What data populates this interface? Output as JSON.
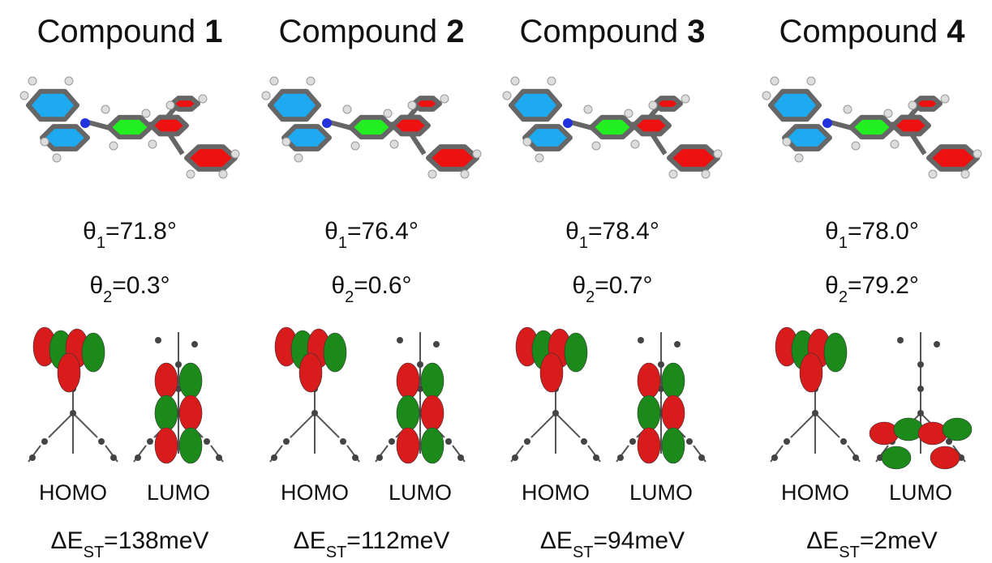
{
  "compounds": [
    {
      "name": "Compound",
      "number": "1",
      "theta1": {
        "symbol": "θ",
        "sub": "1",
        "text": "=71.8°"
      },
      "theta2": {
        "symbol": "θ",
        "sub": "2",
        "text": "=0.3°"
      },
      "homo": "HOMO",
      "lumo": "LUMO",
      "gap": {
        "symbol": "ΔE",
        "sub": "ST",
        "text": "=138meV"
      }
    },
    {
      "name": "Compound",
      "number": "2",
      "theta1": {
        "symbol": "θ",
        "sub": "1",
        "text": "=76.4°"
      },
      "theta2": {
        "symbol": "θ",
        "sub": "2",
        "text": "=0.6°"
      },
      "homo": "HOMO",
      "lumo": "LUMO",
      "gap": {
        "symbol": "ΔE",
        "sub": "ST",
        "text": "=112meV"
      }
    },
    {
      "name": "Compound",
      "number": "3",
      "theta1": {
        "symbol": "θ",
        "sub": "1",
        "text": "=78.4°"
      },
      "theta2": {
        "symbol": "θ",
        "sub": "2",
        "text": "=0.7°"
      },
      "homo": "HOMO",
      "lumo": "LUMO",
      "gap": {
        "symbol": "ΔE",
        "sub": "ST",
        "text": "=94meV"
      }
    },
    {
      "name": "Compound",
      "number": "4",
      "theta1": {
        "symbol": "θ",
        "sub": "1",
        "text": "=78.0°"
      },
      "theta2": {
        "symbol": "θ",
        "sub": "2",
        "text": "=79.2°"
      },
      "homo": "HOMO",
      "lumo": "LUMO",
      "gap": {
        "symbol": "ΔE",
        "sub": "ST",
        "text": "=2meV"
      }
    }
  ]
}
